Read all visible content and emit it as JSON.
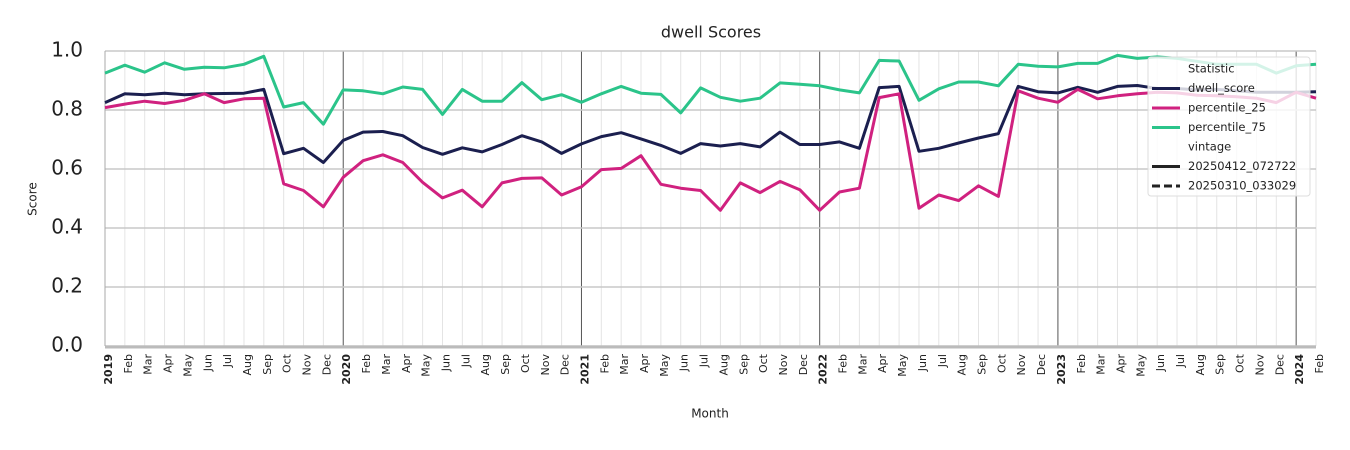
{
  "chart_data": {
    "type": "line",
    "title": "dwell Scores",
    "x_label": "Month",
    "y_label": "Score",
    "categories": [
      "2019",
      "Feb",
      "Mar",
      "Apr",
      "May",
      "Jun",
      "Jul",
      "Aug",
      "Sep",
      "Oct",
      "Nov",
      "Dec",
      "2020",
      "Feb",
      "Mar",
      "Apr",
      "May",
      "Jun",
      "Jul",
      "Aug",
      "Sep",
      "Oct",
      "Nov",
      "Dec",
      "2021",
      "Feb",
      "Mar",
      "Apr",
      "May",
      "Jun",
      "Jul",
      "Aug",
      "Sep",
      "Oct",
      "Nov",
      "Dec",
      "2022",
      "Feb",
      "Mar",
      "Apr",
      "May",
      "Jun",
      "Jul",
      "Aug",
      "Sep",
      "Oct",
      "Nov",
      "Dec",
      "2023",
      "Feb",
      "Mar",
      "Apr",
      "May",
      "Jun",
      "Jul",
      "Aug",
      "Sep",
      "Oct",
      "Nov",
      "Dec",
      "2024",
      "Feb"
    ],
    "series": [
      {
        "name": "dwell_score",
        "color": "#1b1f4f",
        "values": [
          0.825,
          0.855,
          0.852,
          0.857,
          0.852,
          0.855,
          0.856,
          0.857,
          0.87,
          0.652,
          0.67,
          0.622,
          0.697,
          0.725,
          0.727,
          0.713,
          0.673,
          0.65,
          0.672,
          0.658,
          0.683,
          0.713,
          0.692,
          0.653,
          0.685,
          0.71,
          0.723,
          0.702,
          0.68,
          0.653,
          0.686,
          0.678,
          0.686,
          0.675,
          0.725,
          0.683,
          0.683,
          0.692,
          0.67,
          0.876,
          0.88,
          0.66,
          0.67,
          0.688,
          0.705,
          0.72,
          0.88,
          0.862,
          0.858,
          0.877,
          0.86,
          0.88,
          0.883,
          0.873,
          0.873,
          0.868,
          0.87,
          0.865,
          0.86,
          0.86,
          0.86,
          0.862
        ]
      },
      {
        "name": "percentile_25",
        "color": "#d0217f",
        "values": [
          0.808,
          0.82,
          0.83,
          0.822,
          0.833,
          0.855,
          0.825,
          0.838,
          0.84,
          0.55,
          0.527,
          0.472,
          0.572,
          0.628,
          0.648,
          0.622,
          0.555,
          0.502,
          0.528,
          0.472,
          0.553,
          0.568,
          0.57,
          0.512,
          0.54,
          0.598,
          0.602,
          0.645,
          0.548,
          0.535,
          0.527,
          0.46,
          0.553,
          0.52,
          0.558,
          0.53,
          0.46,
          0.522,
          0.535,
          0.842,
          0.855,
          0.467,
          0.512,
          0.493,
          0.543,
          0.507,
          0.865,
          0.84,
          0.826,
          0.87,
          0.838,
          0.848,
          0.855,
          0.86,
          0.858,
          0.85,
          0.848,
          0.845,
          0.84,
          0.825,
          0.86,
          0.84
        ]
      },
      {
        "name": "percentile_75",
        "color": "#2bc48a",
        "values": [
          0.925,
          0.952,
          0.928,
          0.96,
          0.938,
          0.945,
          0.943,
          0.955,
          0.982,
          0.81,
          0.825,
          0.752,
          0.868,
          0.865,
          0.855,
          0.878,
          0.87,
          0.785,
          0.87,
          0.83,
          0.83,
          0.893,
          0.835,
          0.852,
          0.826,
          0.855,
          0.88,
          0.857,
          0.853,
          0.79,
          0.875,
          0.843,
          0.83,
          0.84,
          0.892,
          0.887,
          0.882,
          0.868,
          0.858,
          0.968,
          0.966,
          0.833,
          0.872,
          0.895,
          0.895,
          0.882,
          0.955,
          0.948,
          0.946,
          0.958,
          0.958,
          0.985,
          0.975,
          0.98,
          0.975,
          0.965,
          0.955,
          0.955,
          0.955,
          0.925,
          0.95,
          0.955
        ]
      }
    ],
    "ylim": [
      0,
      1
    ],
    "yticks": [
      {
        "value": 0,
        "label": "0.0"
      },
      0.2,
      0.4,
      0.6,
      0.8,
      {
        "value": 1,
        "label": "1.0"
      }
    ],
    "grid": true,
    "legend": {
      "position": "upper right",
      "statistic_title": "Statistic",
      "vintage_title": "vintage",
      "vintages": [
        {
          "label": "20250412_072722",
          "dash": "solid"
        },
        {
          "label": "20250310_033029",
          "dash": "dashed"
        }
      ]
    }
  }
}
